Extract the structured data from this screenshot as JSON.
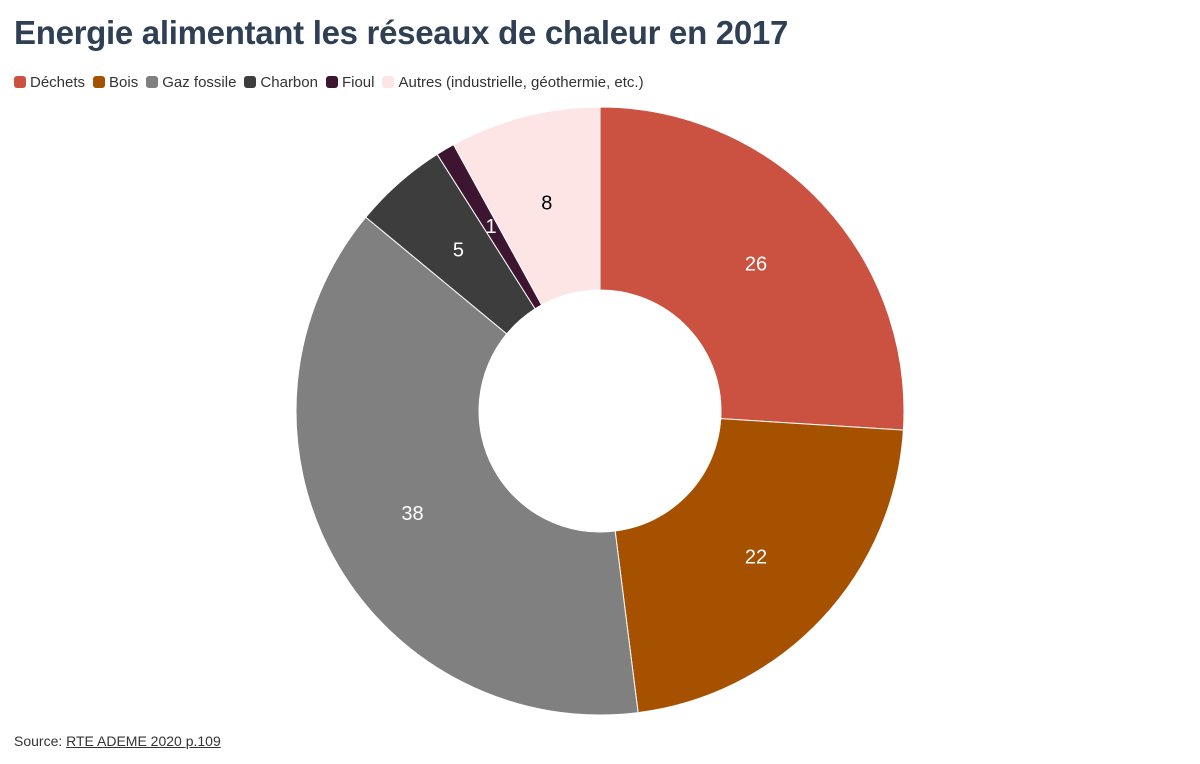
{
  "chart_data": {
    "type": "pie",
    "title": "Energie alimentant les réseaux de chaleur en 2017",
    "categories": [
      "Déchets",
      "Bois",
      "Gaz fossile",
      "Charbon",
      "Fioul",
      "Autres (industrielle, géothermie, etc.)"
    ],
    "values": [
      26,
      22,
      38,
      5,
      1,
      8
    ],
    "colors": [
      "#cb5140",
      "#a65100",
      "#808080",
      "#3d3d3d",
      "#3d1530",
      "#fde5e6"
    ],
    "label_colors": [
      "#ffffff",
      "#ffffff",
      "#ffffff",
      "#ffffff",
      "#ffffff",
      "#000000"
    ],
    "donut": true,
    "legend_position": "top-left"
  },
  "source": {
    "prefix": "Source: ",
    "link_text": "RTE ADEME 2020 p.109"
  }
}
